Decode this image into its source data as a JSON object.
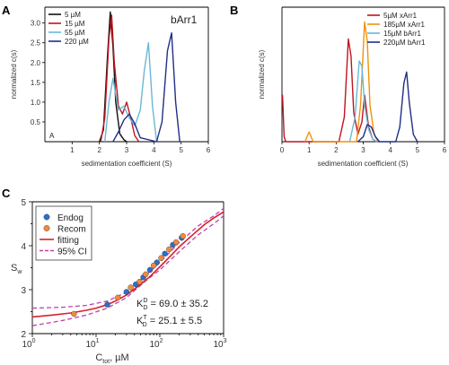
{
  "panels": {
    "a": "A",
    "b": "B",
    "c": "C"
  },
  "chart_data": [
    {
      "panel": "A",
      "type": "line",
      "title": "bArr1",
      "xlabel": "sedimentation coefficient (S)",
      "ylabel": "normalized c(s)",
      "xlim": [
        0,
        6
      ],
      "ylim": [
        0,
        3.4
      ],
      "xticks": [
        1,
        2,
        3,
        4,
        5,
        6
      ],
      "yticks": [
        0.5,
        1.0,
        1.5,
        2.0,
        2.5,
        3.0
      ],
      "corner_label": "A",
      "legend_position": "top-left",
      "series": [
        {
          "name": "5 µM",
          "color": "#111111",
          "x": [
            2.0,
            2.15,
            2.3,
            2.4,
            2.5,
            2.6,
            2.75,
            2.9,
            3.0
          ],
          "y": [
            0,
            0.3,
            2.2,
            3.28,
            2.4,
            1.0,
            0.2,
            0.05,
            0
          ]
        },
        {
          "name": "15 µM",
          "color": "#c0141e",
          "x": [
            2.05,
            2.2,
            2.35,
            2.45,
            2.55,
            2.7,
            2.85,
            3.0,
            3.15,
            3.3,
            3.45
          ],
          "y": [
            0,
            0.6,
            2.6,
            3.2,
            2.0,
            0.9,
            0.7,
            1.0,
            0.6,
            0.15,
            0
          ]
        },
        {
          "name": "55 µM",
          "color": "#6ab8d6",
          "x": [
            2.2,
            2.35,
            2.5,
            2.7,
            2.9,
            3.1,
            3.3,
            3.5,
            3.65,
            3.8,
            3.95,
            4.1
          ],
          "y": [
            0,
            1.0,
            1.6,
            0.8,
            0.9,
            0.6,
            0.4,
            0.8,
            1.8,
            2.5,
            0.9,
            0
          ]
        },
        {
          "name": "220 µM",
          "color": "#1f2f85",
          "x": [
            2.5,
            2.7,
            2.9,
            3.1,
            3.3,
            3.5,
            4.1,
            4.3,
            4.5,
            4.65,
            4.8,
            4.95
          ],
          "y": [
            0,
            0.25,
            0.55,
            0.7,
            0.45,
            0.1,
            0,
            0.5,
            2.3,
            2.75,
            1.0,
            0
          ]
        }
      ]
    },
    {
      "panel": "B",
      "type": "line",
      "xlabel": "sedimentation coefficient (S)",
      "ylabel": "normalized c(s)",
      "xlim": [
        0,
        6
      ],
      "ylim": [
        0,
        5.5
      ],
      "xticks": [
        0,
        1,
        2,
        3,
        4,
        5,
        6
      ],
      "legend_position": "top-right",
      "series": [
        {
          "name": "5µM xArr1",
          "color": "#c0141e",
          "x": [
            0.0,
            0.02,
            0.08,
            0.14,
            2.1,
            2.3,
            2.45,
            2.55,
            2.65,
            2.8,
            2.95,
            3.05,
            3.2,
            3.35,
            3.5
          ],
          "y": [
            1.9,
            1.9,
            0.2,
            0,
            0,
            1.0,
            4.2,
            3.5,
            1.2,
            0.3,
            0.8,
            1.9,
            0.6,
            0.1,
            0
          ]
        },
        {
          "name": "185µM xArr1",
          "color": "#f0920c",
          "x": [
            0.85,
            1.0,
            1.15,
            2.75,
            2.9,
            3.05,
            3.15,
            3.25,
            3.4,
            3.55
          ],
          "y": [
            0,
            0.4,
            0,
            0,
            1.5,
            4.9,
            4.1,
            1.5,
            0.3,
            0
          ]
        },
        {
          "name": "15µM bArr1",
          "color": "#6ab8d6",
          "x": [
            2.5,
            2.7,
            2.85,
            2.95,
            3.05,
            3.2,
            3.35,
            3.5
          ],
          "y": [
            0,
            1.0,
            3.3,
            3.1,
            1.5,
            0.5,
            0.1,
            0
          ]
        },
        {
          "name": "220µM bArr1",
          "color": "#1f2f85",
          "x": [
            2.8,
            3.0,
            3.15,
            3.3,
            3.45,
            3.6,
            4.2,
            4.35,
            4.5,
            4.6,
            4.7,
            4.85,
            5.0
          ],
          "y": [
            0,
            0.2,
            0.7,
            0.6,
            0.2,
            0,
            0,
            0.6,
            2.4,
            2.85,
            1.6,
            0.3,
            0
          ]
        }
      ]
    },
    {
      "panel": "C",
      "type": "scatter",
      "ylabel": "S_w",
      "xlabel": "C_tot, µM",
      "xscale": "log",
      "xlim": [
        1,
        1000
      ],
      "ylim": [
        2,
        5
      ],
      "yticks": [
        2,
        3,
        4,
        5
      ],
      "legend_position": "top-left",
      "legend": [
        "Endog",
        "Recom",
        "fitting",
        "95% CI"
      ],
      "series": [
        {
          "name": "Endog",
          "color": "#2d6ec9",
          "x": [
            15,
            30,
            42,
            55,
            70,
            90,
            120,
            160,
            220
          ],
          "y": [
            2.66,
            2.95,
            3.12,
            3.28,
            3.45,
            3.62,
            3.82,
            4.02,
            4.18
          ]
        },
        {
          "name": "Recom",
          "color": "#f28a3c",
          "x": [
            4.5,
            22,
            35,
            48,
            60,
            80,
            105,
            140,
            180,
            230
          ],
          "y": [
            2.45,
            2.82,
            3.05,
            3.18,
            3.35,
            3.55,
            3.72,
            3.92,
            4.08,
            4.22
          ]
        },
        {
          "name": "fitting",
          "color": "#d6212a",
          "x": [
            1,
            2,
            4,
            7,
            10,
            15,
            20,
            30,
            50,
            70,
            100,
            150,
            200,
            300,
            500,
            700,
            1000
          ],
          "y": [
            2.38,
            2.42,
            2.47,
            2.53,
            2.58,
            2.66,
            2.74,
            2.88,
            3.12,
            3.3,
            3.52,
            3.78,
            3.97,
            4.2,
            4.48,
            4.63,
            4.77
          ]
        },
        {
          "name": "95% CI upper",
          "color": "#c040a8",
          "x": [
            1,
            3,
            7,
            15,
            30,
            60,
            100,
            200,
            400,
            700,
            1000
          ],
          "y": [
            2.58,
            2.6,
            2.64,
            2.74,
            2.94,
            3.32,
            3.62,
            4.07,
            4.45,
            4.68,
            4.85
          ]
        },
        {
          "name": "95% CI lower",
          "color": "#c040a8",
          "x": [
            1,
            3,
            7,
            15,
            30,
            60,
            100,
            200,
            400,
            700,
            1000
          ],
          "y": [
            2.18,
            2.3,
            2.42,
            2.58,
            2.82,
            3.2,
            3.45,
            3.86,
            4.25,
            4.5,
            4.68
          ]
        }
      ],
      "annotations": {
        "kd_dimer": "69.0 ± 35.2",
        "kd_tetramer": "25.1 ± 5.5"
      }
    }
  ]
}
